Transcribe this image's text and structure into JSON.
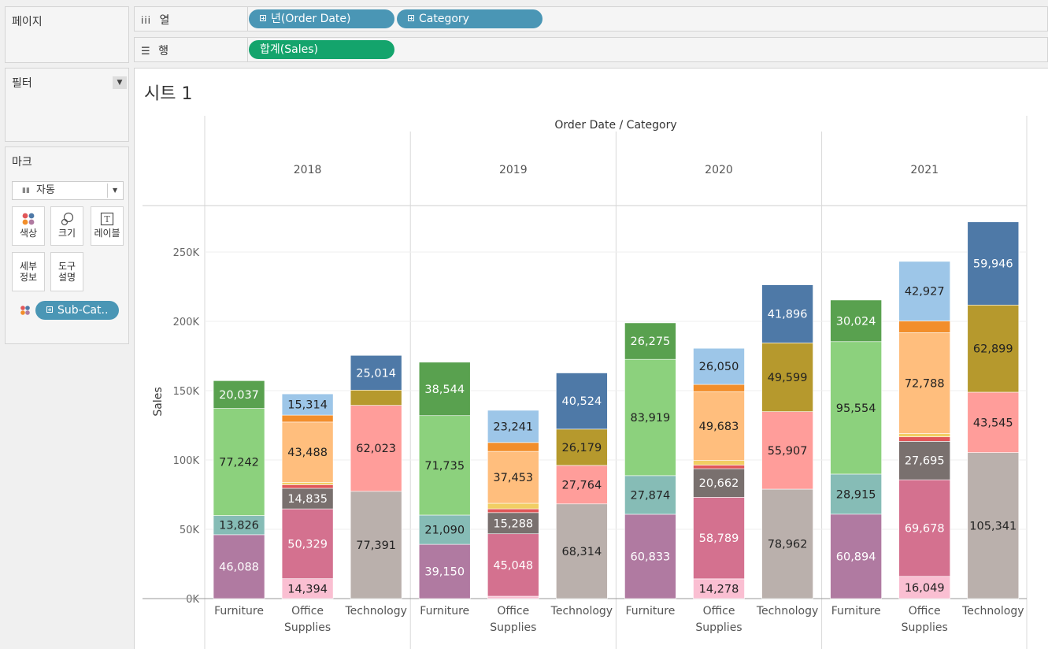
{
  "shelves": {
    "pages_label": "페이지",
    "columns_label": "열",
    "rows_label": "행",
    "columns_pills": [
      "년(Order Date)",
      "Category"
    ],
    "rows_pills": [
      "합계(Sales)"
    ]
  },
  "filters": {
    "label": "필터"
  },
  "marks": {
    "label": "마크",
    "type_value": "자동",
    "buttons": {
      "color": "색상",
      "size": "크기",
      "label": "레이블",
      "detail": "세부\n정보",
      "tooltip": "도구\n설명"
    },
    "color_pill": "Sub-Cat.."
  },
  "sheet": {
    "title": "시트 1"
  },
  "colors": {
    "pill_blue": "#4a96b5",
    "pill_green": "#14a46c"
  },
  "chart_data": {
    "type": "bar",
    "stacked": true,
    "title": "시트 1",
    "header": "Order Date / Category",
    "ylabel": "Sales",
    "ylim": [
      0,
      280000
    ],
    "yticks": [
      0,
      50000,
      100000,
      150000,
      200000,
      250000
    ],
    "ytick_labels": [
      "0K",
      "50K",
      "100K",
      "150K",
      "200K",
      "250K"
    ],
    "years": [
      "2018",
      "2019",
      "2020",
      "2021"
    ],
    "categories": [
      "Furniture",
      "Office\nSupplies",
      "Technology"
    ],
    "segment_colors": {
      "furniture": [
        "#b07aa1",
        "#86bcb6",
        "#8cd17d",
        "#59a14f"
      ],
      "office": [
        "#fabfd2",
        "#d4718f",
        "#79706e",
        "#e15759",
        "#f1ce63",
        "#ffbe7d",
        "#f28e2b",
        "#9dc6e8"
      ],
      "technology": [
        "#bab0ac",
        "#ff9d9a",
        "#b6992d",
        "#4e79a7"
      ]
    },
    "groups": [
      {
        "year": "2018",
        "category": "Furniture",
        "values": [
          46088,
          13826,
          77242,
          20037
        ],
        "labels": [
          "46,088",
          "13,826",
          "77,242",
          "20,037"
        ]
      },
      {
        "year": "2018",
        "category": "Office Supplies",
        "values": [
          14394,
          50329,
          14835,
          2600,
          1700,
          43488,
          5000,
          15314
        ],
        "labels": [
          "14,394",
          "50,329",
          "14,835",
          "",
          "",
          "43,488",
          "",
          "15,314"
        ]
      },
      {
        "year": "2018",
        "category": "Technology",
        "values": [
          77391,
          62023,
          11000,
          25014
        ],
        "labels": [
          "77,391",
          "62,023",
          "",
          "25,014"
        ]
      },
      {
        "year": "2019",
        "category": "Furniture",
        "values": [
          39150,
          21090,
          71735,
          38544
        ],
        "labels": [
          "39,150",
          "21,090",
          "71,735",
          "38,544"
        ]
      },
      {
        "year": "2019",
        "category": "Office Supplies",
        "values": [
          1700,
          45048,
          15288,
          2700,
          4000,
          37453,
          6400,
          23241
        ],
        "labels": [
          "",
          "45,048",
          "15,288",
          "",
          "",
          "37,453",
          "",
          "23,241"
        ]
      },
      {
        "year": "2019",
        "category": "Technology",
        "values": [
          68314,
          27764,
          26179,
          40524
        ],
        "labels": [
          "68,314",
          "27,764",
          "26,179",
          "40,524"
        ]
      },
      {
        "year": "2020",
        "category": "Furniture",
        "values": [
          60833,
          27874,
          83919,
          26275
        ],
        "labels": [
          "60,833",
          "27,874",
          "83,919",
          "26,275"
        ]
      },
      {
        "year": "2020",
        "category": "Office Supplies",
        "values": [
          14278,
          58789,
          20662,
          2600,
          3300,
          49683,
          5200,
          26050
        ],
        "labels": [
          "14,278",
          "58,789",
          "20,662",
          "",
          "",
          "49,683",
          "",
          "26,050"
        ]
      },
      {
        "year": "2020",
        "category": "Technology",
        "values": [
          78962,
          55907,
          49599,
          41896
        ],
        "labels": [
          "78,962",
          "55,907",
          "49,599",
          "41,896"
        ]
      },
      {
        "year": "2021",
        "category": "Furniture",
        "values": [
          60894,
          28915,
          95554,
          30024
        ],
        "labels": [
          "60,894",
          "28,915",
          "95,554",
          "30,024"
        ]
      },
      {
        "year": "2021",
        "category": "Office Supplies",
        "values": [
          16049,
          69678,
          27695,
          3300,
          2300,
          72788,
          8500,
          42927
        ],
        "labels": [
          "16,049",
          "69,678",
          "27,695",
          "",
          "",
          "72,788",
          "",
          "42,927"
        ]
      },
      {
        "year": "2021",
        "category": "Technology",
        "values": [
          105341,
          43545,
          62899,
          59946
        ],
        "labels": [
          "105,341",
          "43,545",
          "62,899",
          "59,946"
        ]
      }
    ]
  }
}
